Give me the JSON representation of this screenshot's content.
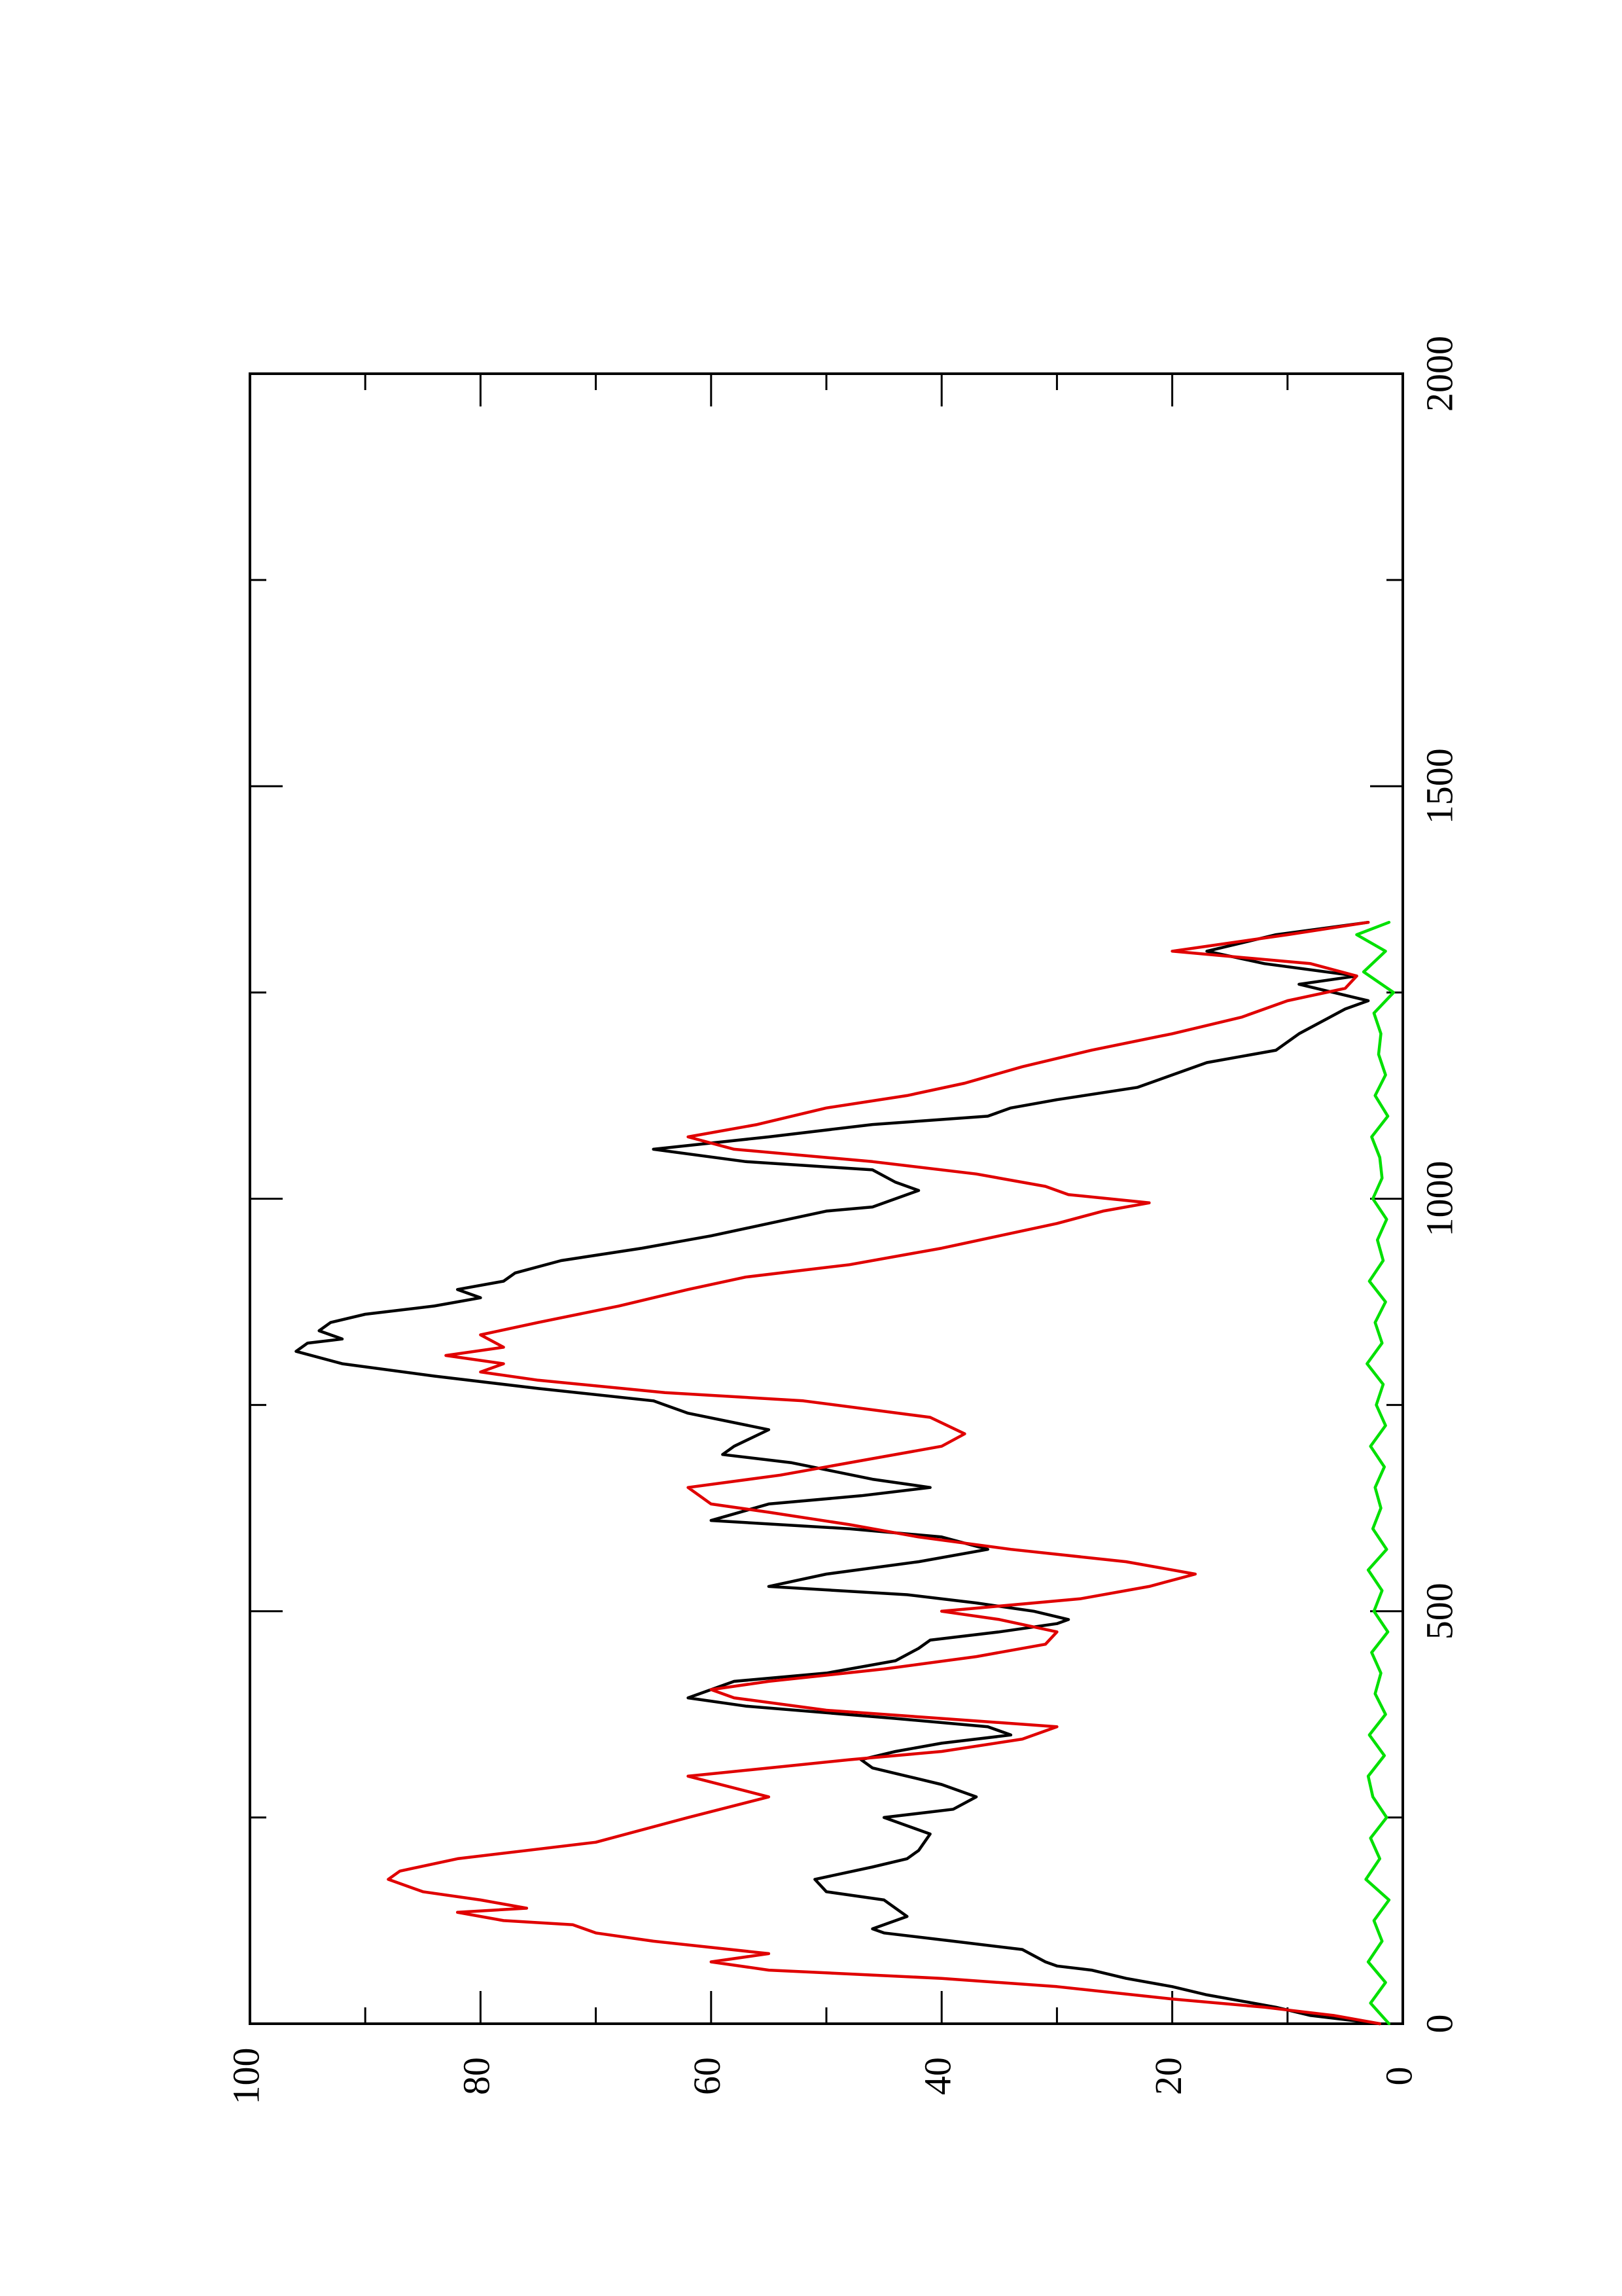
{
  "chart_data": {
    "type": "line",
    "orientation": "rotated-90-ccw",
    "title": "",
    "xlabel": "",
    "ylabel": "",
    "xlim": [
      0,
      2000
    ],
    "ylim": [
      0,
      100
    ],
    "x_ticks": [
      0,
      500,
      1000,
      1500,
      2000
    ],
    "y_ticks": [
      0,
      20,
      40,
      60,
      80,
      100
    ],
    "x_minor_ticks": [
      250,
      750,
      1250,
      1750
    ],
    "y_minor_ticks": [
      10,
      30,
      50,
      70,
      90
    ],
    "grid": false,
    "legend": "none",
    "series": [
      {
        "color": "#000000",
        "x": [
          0,
          10,
          20,
          35,
          45,
          55,
          65,
          70,
          75,
          90,
          100,
          110,
          115,
          130,
          150,
          160,
          175,
          190,
          200,
          210,
          230,
          240,
          250,
          260,
          275,
          290,
          300,
          310,
          320,
          330,
          340,
          350,
          360,
          370,
          385,
          395,
          405,
          415,
          425,
          440,
          455,
          465,
          475,
          485,
          490,
          500,
          510,
          520,
          530,
          545,
          560,
          575,
          590,
          600,
          610,
          630,
          640,
          650,
          660,
          680,
          690,
          700,
          720,
          740,
          755,
          770,
          785,
          800,
          815,
          825,
          830,
          840,
          850,
          860,
          870,
          880,
          890,
          900,
          910,
          925,
          940,
          955,
          970,
          985,
          990,
          1000,
          1010,
          1020,
          1035,
          1045,
          1060,
          1075,
          1090,
          1100,
          1110,
          1120,
          1135,
          1150,
          1165,
          1180,
          1200,
          1215,
          1230,
          1240,
          1250,
          1260,
          1270,
          1285,
          1300,
          1320,
          1335
        ],
        "y": [
          2,
          8,
          11,
          17,
          20,
          24,
          27,
          30,
          31,
          33,
          39,
          45,
          46,
          43,
          45,
          50,
          51,
          46,
          43,
          42,
          41,
          43,
          45,
          39,
          37,
          40,
          43,
          46,
          47,
          44,
          40,
          34,
          36,
          44,
          57,
          62,
          60,
          58,
          50,
          44,
          42,
          41,
          35,
          30,
          29,
          32,
          37,
          43,
          55,
          50,
          42,
          36,
          40,
          48,
          60,
          55,
          47,
          41,
          46,
          53,
          59,
          58,
          55,
          62,
          65,
          75,
          84,
          92,
          96,
          95,
          92,
          94,
          93,
          90,
          84,
          80,
          82,
          78,
          77,
          73,
          66,
          60,
          55,
          50,
          46,
          44,
          42,
          44,
          46,
          57,
          65,
          55,
          46,
          36,
          34,
          30,
          23,
          20,
          17,
          11,
          9,
          7,
          5,
          3,
          6,
          9,
          4,
          12,
          17,
          11,
          3
        ]
      },
      {
        "color": "#e00000",
        "x": [
          0,
          10,
          20,
          30,
          45,
          55,
          65,
          75,
          85,
          100,
          110,
          120,
          125,
          135,
          140,
          150,
          160,
          175,
          185,
          200,
          210,
          220,
          250,
          275,
          300,
          310,
          320,
          330,
          345,
          360,
          370,
          380,
          395,
          405,
          415,
          430,
          445,
          460,
          475,
          490,
          500,
          515,
          530,
          545,
          560,
          575,
          590,
          605,
          620,
          630,
          650,
          665,
          680,
          700,
          715,
          735,
          755,
          765,
          780,
          790,
          800,
          810,
          820,
          835,
          850,
          870,
          890,
          905,
          920,
          940,
          955,
          970,
          985,
          995,
          1005,
          1015,
          1030,
          1045,
          1060,
          1075,
          1090,
          1110,
          1125,
          1140,
          1160,
          1180,
          1200,
          1220,
          1240,
          1255,
          1270,
          1285,
          1300,
          1320,
          1335
        ],
        "y": [
          2,
          6,
          12,
          20,
          30,
          40,
          55,
          60,
          55,
          65,
          70,
          72,
          78,
          82,
          76,
          80,
          85,
          88,
          87,
          82,
          76,
          70,
          62,
          55,
          62,
          55,
          48,
          40,
          33,
          30,
          40,
          50,
          58,
          60,
          55,
          45,
          37,
          31,
          30,
          35,
          40,
          28,
          22,
          18,
          24,
          34,
          42,
          48,
          55,
          60,
          62,
          54,
          48,
          40,
          38,
          41,
          52,
          64,
          75,
          80,
          78,
          83,
          78,
          80,
          75,
          68,
          62,
          57,
          48,
          40,
          35,
          30,
          26,
          22,
          29,
          31,
          37,
          46,
          58,
          62,
          56,
          50,
          43,
          38,
          33,
          27,
          20,
          14,
          10,
          5,
          4,
          8,
          20,
          10,
          3
        ]
      },
      {
        "color": "#00e000",
        "x": [
          0,
          25,
          50,
          75,
          100,
          125,
          150,
          175,
          200,
          225,
          250,
          275,
          300,
          325,
          350,
          375,
          400,
          425,
          450,
          475,
          500,
          525,
          550,
          575,
          600,
          625,
          650,
          675,
          700,
          725,
          750,
          775,
          800,
          825,
          850,
          875,
          900,
          925,
          950,
          975,
          1000,
          1025,
          1050,
          1075,
          1100,
          1125,
          1150,
          1175,
          1200,
          1225,
          1250,
          1275,
          1300,
          1320,
          1335
        ],
        "y": [
          1.2,
          2.8,
          1.5,
          3.0,
          1.8,
          2.5,
          1.2,
          3.2,
          2.0,
          2.8,
          1.4,
          2.6,
          3.0,
          1.6,
          2.9,
          1.5,
          2.4,
          1.9,
          2.7,
          1.3,
          2.5,
          1.8,
          3.0,
          1.4,
          2.6,
          1.9,
          2.4,
          1.6,
          2.8,
          1.5,
          2.3,
          1.7,
          3.1,
          1.8,
          2.4,
          1.5,
          2.9,
          1.7,
          2.2,
          1.4,
          2.6,
          1.8,
          2.0,
          2.7,
          1.3,
          2.4,
          1.5,
          2.1,
          1.9,
          2.5,
          0.8,
          3.4,
          1.5,
          4.0,
          1.2
        ]
      }
    ]
  }
}
